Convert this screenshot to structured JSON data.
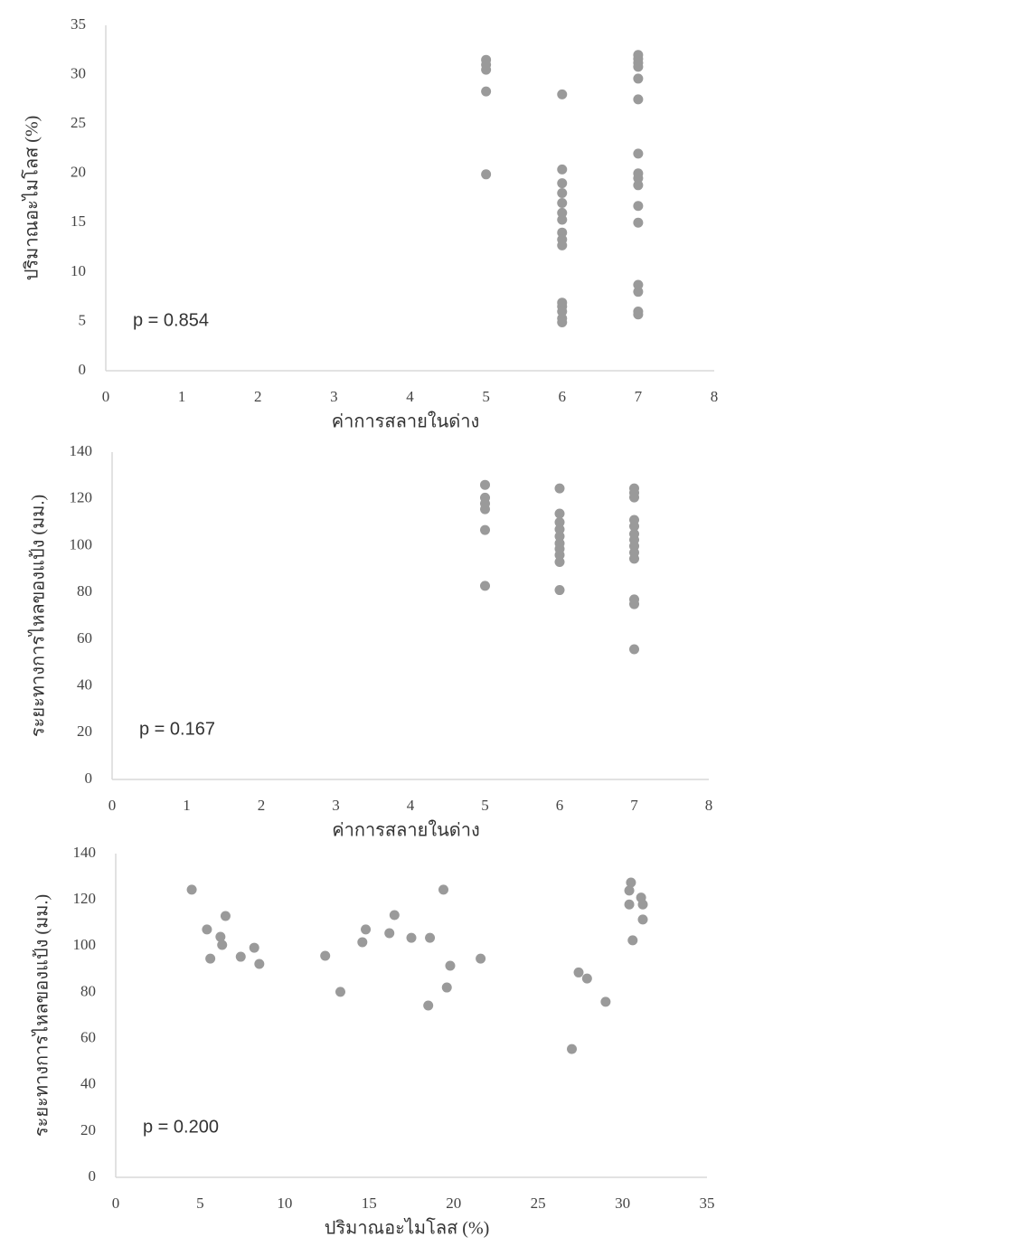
{
  "chart_data": [
    {
      "type": "scatter",
      "xlabel": "ค่าการสลายในด่าง",
      "ylabel": "ปริมาณอะไมโลส (%)",
      "annotation": "p = 0.854",
      "color": "#9a9a9a",
      "xlim": [
        0,
        8
      ],
      "xticks": [
        0,
        1,
        2,
        3,
        4,
        5,
        6,
        7,
        8
      ],
      "ylim": [
        0,
        35
      ],
      "yticks": [
        0,
        5,
        10,
        15,
        20,
        25,
        30,
        35
      ],
      "x": [
        5,
        5,
        5,
        5,
        5,
        6,
        6,
        6,
        6,
        6,
        6,
        6,
        6,
        6,
        6,
        6,
        6,
        6,
        6,
        6,
        7,
        7,
        7,
        7,
        7,
        7,
        7,
        7,
        7,
        7,
        7,
        7,
        7,
        7,
        7,
        7
      ],
      "values": [
        31.5,
        31,
        30.5,
        28.3,
        19.9,
        28,
        20.4,
        19,
        18,
        17,
        16,
        15.3,
        14,
        13.3,
        12.7,
        6.9,
        6.5,
        6,
        5.3,
        4.9,
        32,
        31.6,
        31.2,
        30.8,
        29.6,
        27.5,
        22,
        20,
        19.5,
        18.8,
        16.7,
        15,
        8.7,
        8,
        6,
        5.7
      ]
    },
    {
      "type": "scatter",
      "xlabel": "ค่าการสลายในด่าง",
      "ylabel": "ระยะทางการไหลของแป้ง (มม.)",
      "annotation": "p = 0.167",
      "color": "#9a9a9a",
      "xlim": [
        0,
        8
      ],
      "xticks": [
        0,
        1,
        2,
        3,
        4,
        5,
        6,
        7,
        8
      ],
      "ylim": [
        0,
        140
      ],
      "yticks": [
        0,
        20,
        40,
        60,
        80,
        100,
        120,
        140
      ],
      "x": [
        5,
        5,
        5,
        5,
        5,
        5,
        6,
        6,
        6,
        6,
        6,
        6,
        6,
        6,
        6,
        6,
        7,
        7,
        7,
        7,
        7,
        7,
        7,
        7,
        7,
        7,
        7,
        7,
        7
      ],
      "values": [
        126,
        120.5,
        118,
        115.6,
        106.7,
        82.8,
        124.5,
        113.7,
        110,
        107,
        104,
        101,
        98.6,
        96,
        93,
        81,
        124.5,
        122.6,
        120.6,
        111,
        108.3,
        105,
        102.5,
        99.8,
        97,
        94.4,
        77,
        75,
        55.7
      ]
    },
    {
      "type": "scatter",
      "xlabel": "ปริมาณอะไมโลส (%)",
      "ylabel": "ระยะทางการไหลของแป้ง (มม.)",
      "annotation": "p = 0.200",
      "color": "#9a9a9a",
      "xlim": [
        0,
        35
      ],
      "xticks": [
        0,
        5,
        10,
        15,
        20,
        25,
        30,
        35
      ],
      "ylim": [
        0,
        140
      ],
      "yticks": [
        0,
        20,
        40,
        60,
        80,
        100,
        120,
        140
      ],
      "x": [
        4.5,
        5.4,
        5.6,
        6.2,
        6.5,
        6.3,
        7.4,
        8.2,
        8.5,
        12.4,
        13.3,
        14.6,
        14.8,
        16.2,
        16.5,
        17.5,
        18.6,
        18.5,
        19.4,
        19.6,
        19.8,
        21.6,
        27,
        27.4,
        27.9,
        29,
        30.5,
        30.4,
        31.1,
        30.4,
        31.2,
        30.6,
        31.2
      ],
      "values": [
        124.4,
        107.2,
        94.6,
        104,
        113,
        100.5,
        95.4,
        99.3,
        92.3,
        95.8,
        80.2,
        101.7,
        107.2,
        105.6,
        113.4,
        103.6,
        103.6,
        74.3,
        124.4,
        82.1,
        91.5,
        94.6,
        55.5,
        88.6,
        86,
        75.9,
        127.5,
        124,
        121,
        118,
        118,
        102.5,
        111.5
      ]
    }
  ]
}
